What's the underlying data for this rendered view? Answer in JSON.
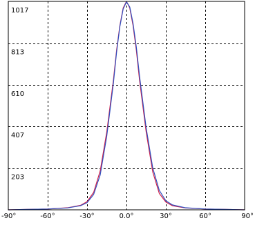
{
  "chart_data": {
    "type": "line",
    "title": "",
    "xlabel": "",
    "ylabel": "",
    "xlim": [
      -90,
      90
    ],
    "ylim": [
      0,
      1017
    ],
    "grid": true,
    "x_ticks": [
      {
        "value": -90,
        "label": "-90°"
      },
      {
        "value": -60,
        "label": "-60°"
      },
      {
        "value": -30,
        "label": "-30°"
      },
      {
        "value": 0,
        "label": "0.0°"
      },
      {
        "value": 30,
        "label": "30°"
      },
      {
        "value": 60,
        "label": "60°"
      },
      {
        "value": 90,
        "label": "90°"
      }
    ],
    "y_ticks": [
      {
        "value": 203,
        "label": "203"
      },
      {
        "value": 407,
        "label": "407"
      },
      {
        "value": 610,
        "label": "610"
      },
      {
        "value": 813,
        "label": "813"
      },
      {
        "value": 1017,
        "label": "1017"
      }
    ],
    "series": [
      {
        "color": "#d0204a",
        "x": [
          -90,
          -75,
          -60,
          -45,
          -35,
          -30,
          -25,
          -20,
          -15,
          -10,
          -7.5,
          -5,
          -2.5,
          0,
          2.5,
          5,
          7.5,
          10,
          15,
          20,
          25,
          30,
          35,
          45,
          60,
          75,
          90
        ],
        "y": [
          0,
          2,
          4,
          10,
          22,
          40,
          85,
          190,
          380,
          630,
          780,
          900,
          985,
          1017,
          985,
          900,
          780,
          630,
          380,
          185,
          80,
          38,
          20,
          9,
          4,
          2,
          0
        ]
      },
      {
        "color": "#3050c0",
        "x": [
          -90,
          -75,
          -60,
          -45,
          -35,
          -30,
          -25,
          -20,
          -15,
          -10,
          -7.5,
          -5,
          -2.5,
          0,
          2.5,
          5,
          7.5,
          10,
          15,
          20,
          25,
          30,
          35,
          45,
          60,
          75,
          90
        ],
        "y": [
          0,
          2,
          4,
          9,
          20,
          35,
          75,
          170,
          360,
          615,
          770,
          895,
          980,
          1015,
          990,
          910,
          795,
          650,
          400,
          205,
          95,
          44,
          24,
          10,
          4,
          2,
          0
        ]
      }
    ]
  }
}
